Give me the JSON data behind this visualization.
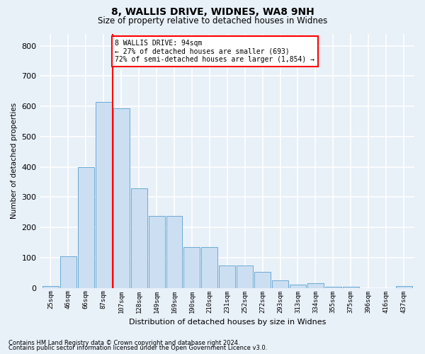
{
  "title1": "8, WALLIS DRIVE, WIDNES, WA8 9NH",
  "title2": "Size of property relative to detached houses in Widnes",
  "xlabel": "Distribution of detached houses by size in Widnes",
  "ylabel": "Number of detached properties",
  "categories": [
    "25sqm",
    "46sqm",
    "66sqm",
    "87sqm",
    "107sqm",
    "128sqm",
    "149sqm",
    "169sqm",
    "190sqm",
    "210sqm",
    "231sqm",
    "252sqm",
    "272sqm",
    "293sqm",
    "313sqm",
    "334sqm",
    "355sqm",
    "375sqm",
    "396sqm",
    "416sqm",
    "437sqm"
  ],
  "values": [
    7,
    105,
    400,
    615,
    593,
    328,
    237,
    237,
    135,
    135,
    75,
    75,
    52,
    25,
    12,
    15,
    4,
    4,
    0,
    0,
    7
  ],
  "bar_color": "#ccdff2",
  "bar_edge_color": "#6aaad4",
  "bg_color": "#e8f0f8",
  "grid_color": "#ffffff",
  "vline_color": "red",
  "annotation_text": "8 WALLIS DRIVE: 94sqm\n← 27% of detached houses are smaller (693)\n72% of semi-detached houses are larger (1,854) →",
  "annotation_box_color": "white",
  "annotation_box_edge": "red",
  "ylim": [
    0,
    840
  ],
  "yticks": [
    0,
    100,
    200,
    300,
    400,
    500,
    600,
    700,
    800
  ],
  "footer1": "Contains HM Land Registry data © Crown copyright and database right 2024.",
  "footer2": "Contains public sector information licensed under the Open Government Licence v3.0."
}
